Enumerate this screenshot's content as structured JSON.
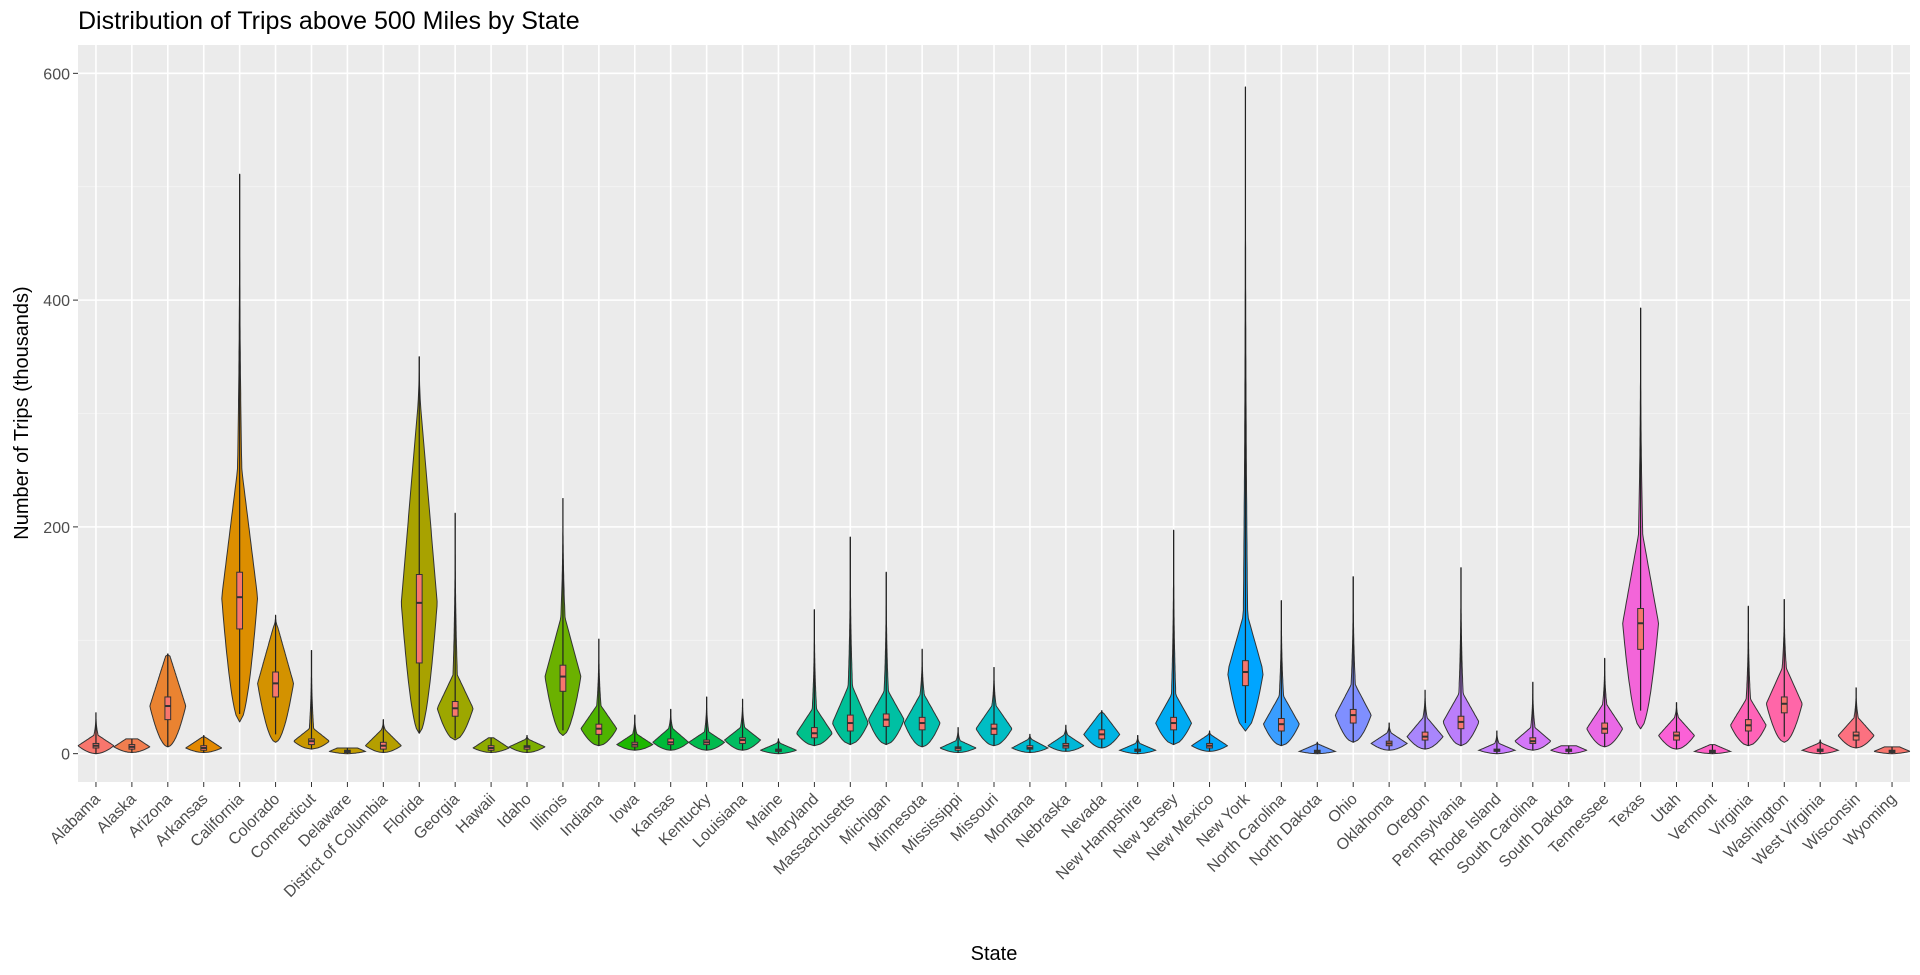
{
  "chart_data": {
    "type": "violin",
    "title": "Distribution of Trips above 500 Miles by State",
    "xlabel": "State",
    "ylabel": "Number of Trips (thousands)",
    "ylim": [
      -25,
      625
    ],
    "yticks": [
      0,
      200,
      400,
      600
    ],
    "grid": true,
    "legend": "none",
    "series": [
      {
        "name": "Alabama",
        "min": 0,
        "q1": 5,
        "median": 7,
        "q3": 9,
        "max": 36,
        "color": "#f8766d"
      },
      {
        "name": "Alaska",
        "min": 1,
        "q1": 4,
        "median": 6,
        "q3": 8,
        "max": 13,
        "color": "#f17e4f"
      },
      {
        "name": "Arizona",
        "min": 6,
        "q1": 30,
        "median": 42,
        "q3": 50,
        "max": 88,
        "color": "#ea8331"
      },
      {
        "name": "Arkansas",
        "min": 1,
        "q1": 3,
        "median": 5,
        "q3": 7,
        "max": 16,
        "color": "#e38900"
      },
      {
        "name": "California",
        "min": 28,
        "q1": 110,
        "median": 138,
        "q3": 160,
        "max": 511,
        "color": "#dc8e00"
      },
      {
        "name": "Colorado",
        "min": 10,
        "q1": 50,
        "median": 62,
        "q3": 72,
        "max": 122,
        "color": "#d39200"
      },
      {
        "name": "Connecticut",
        "min": 4,
        "q1": 8,
        "median": 11,
        "q3": 13,
        "max": 91,
        "color": "#c99800"
      },
      {
        "name": "Delaware",
        "min": 0,
        "q1": 1,
        "median": 2,
        "q3": 3,
        "max": 5,
        "color": "#c09b00"
      },
      {
        "name": "District of Columbia",
        "min": 1,
        "q1": 4,
        "median": 7,
        "q3": 10,
        "max": 30,
        "color": "#b59f00"
      },
      {
        "name": "Florida",
        "min": 18,
        "q1": 80,
        "median": 133,
        "q3": 158,
        "max": 350,
        "color": "#a8a200"
      },
      {
        "name": "Georgia",
        "min": 12,
        "q1": 33,
        "median": 40,
        "q3": 46,
        "max": 212,
        "color": "#9da700"
      },
      {
        "name": "Hawaii",
        "min": 1,
        "q1": 3,
        "median": 5,
        "q3": 7,
        "max": 14,
        "color": "#8fab00"
      },
      {
        "name": "Idaho",
        "min": 1,
        "q1": 4,
        "median": 6,
        "q3": 7,
        "max": 16,
        "color": "#7cae00"
      },
      {
        "name": "Illinois",
        "min": 16,
        "q1": 55,
        "median": 68,
        "q3": 78,
        "max": 225,
        "color": "#6bb100"
      },
      {
        "name": "Indiana",
        "min": 7,
        "q1": 17,
        "median": 22,
        "q3": 26,
        "max": 101,
        "color": "#4fb400"
      },
      {
        "name": "Iowa",
        "min": 3,
        "q1": 6,
        "median": 8,
        "q3": 10,
        "max": 34,
        "color": "#1db700"
      },
      {
        "name": "Kansas",
        "min": 3,
        "q1": 8,
        "median": 10,
        "q3": 13,
        "max": 39,
        "color": "#00ba38"
      },
      {
        "name": "Kentucky",
        "min": 3,
        "q1": 8,
        "median": 10,
        "q3": 12,
        "max": 50,
        "color": "#00bb4e"
      },
      {
        "name": "Louisiana",
        "min": 3,
        "q1": 9,
        "median": 12,
        "q3": 14,
        "max": 48,
        "color": "#00bd61"
      },
      {
        "name": "Maine",
        "min": 0,
        "q1": 2,
        "median": 3,
        "q3": 4,
        "max": 13,
        "color": "#00be70"
      },
      {
        "name": "Maryland",
        "min": 7,
        "q1": 14,
        "median": 18,
        "q3": 23,
        "max": 127,
        "color": "#00c08b"
      },
      {
        "name": "Massachusetts",
        "min": 8,
        "q1": 20,
        "median": 27,
        "q3": 34,
        "max": 191,
        "color": "#00c098"
      },
      {
        "name": "Michigan",
        "min": 8,
        "q1": 24,
        "median": 30,
        "q3": 35,
        "max": 160,
        "color": "#00c0a3"
      },
      {
        "name": "Minnesota",
        "min": 6,
        "q1": 21,
        "median": 27,
        "q3": 32,
        "max": 92,
        "color": "#00c0af"
      },
      {
        "name": "Mississippi",
        "min": 1,
        "q1": 3,
        "median": 5,
        "q3": 6,
        "max": 23,
        "color": "#00bfba"
      },
      {
        "name": "Missouri",
        "min": 7,
        "q1": 17,
        "median": 22,
        "q3": 26,
        "max": 76,
        "color": "#00bdc4"
      },
      {
        "name": "Montana",
        "min": 1,
        "q1": 4,
        "median": 5,
        "q3": 7,
        "max": 17,
        "color": "#00bbcf"
      },
      {
        "name": "Nebraska",
        "min": 2,
        "q1": 5,
        "median": 7,
        "q3": 9,
        "max": 25,
        "color": "#00b8d8"
      },
      {
        "name": "Nevada",
        "min": 5,
        "q1": 13,
        "median": 17,
        "q3": 21,
        "max": 38,
        "color": "#00b4e4"
      },
      {
        "name": "New Hampshire",
        "min": 0,
        "q1": 2,
        "median": 3,
        "q3": 4,
        "max": 16,
        "color": "#00b0eb"
      },
      {
        "name": "New Jersey",
        "min": 8,
        "q1": 21,
        "median": 27,
        "q3": 32,
        "max": 197,
        "color": "#00abf3"
      },
      {
        "name": "New Mexico",
        "min": 2,
        "q1": 5,
        "median": 7,
        "q3": 9,
        "max": 20,
        "color": "#00a5f9"
      },
      {
        "name": "New York",
        "min": 20,
        "q1": 60,
        "median": 72,
        "q3": 82,
        "max": 588,
        "color": "#00a5ff"
      },
      {
        "name": "North Carolina",
        "min": 7,
        "q1": 20,
        "median": 26,
        "q3": 31,
        "max": 135,
        "color": "#399dff"
      },
      {
        "name": "North Dakota",
        "min": 0,
        "q1": 1,
        "median": 2,
        "q3": 3,
        "max": 10,
        "color": "#6597ff"
      },
      {
        "name": "Ohio",
        "min": 10,
        "q1": 27,
        "median": 34,
        "q3": 39,
        "max": 156,
        "color": "#7f8fff"
      },
      {
        "name": "Oklahoma",
        "min": 3,
        "q1": 7,
        "median": 9,
        "q3": 11,
        "max": 27,
        "color": "#9590ff"
      },
      {
        "name": "Oregon",
        "min": 4,
        "q1": 12,
        "median": 15,
        "q3": 19,
        "max": 56,
        "color": "#a986fd"
      },
      {
        "name": "Pennsylvania",
        "min": 7,
        "q1": 22,
        "median": 28,
        "q3": 33,
        "max": 164,
        "color": "#bb7efb"
      },
      {
        "name": "Rhode Island",
        "min": 0,
        "q1": 2,
        "median": 3,
        "q3": 4,
        "max": 20,
        "color": "#c77cff"
      },
      {
        "name": "South Carolina",
        "min": 3,
        "q1": 9,
        "median": 11,
        "q3": 14,
        "max": 63,
        "color": "#d477f8"
      },
      {
        "name": "South Dakota",
        "min": 0,
        "q1": 2,
        "median": 3,
        "q3": 4,
        "max": 7,
        "color": "#e06ef0"
      },
      {
        "name": "Tennessee",
        "min": 6,
        "q1": 18,
        "median": 22,
        "q3": 27,
        "max": 84,
        "color": "#ea69e6"
      },
      {
        "name": "Texas",
        "min": 22,
        "q1": 92,
        "median": 115,
        "q3": 128,
        "max": 393,
        "color": "#f365d9"
      },
      {
        "name": "Utah",
        "min": 4,
        "q1": 12,
        "median": 16,
        "q3": 19,
        "max": 45,
        "color": "#fb61d7"
      },
      {
        "name": "Vermont",
        "min": 0,
        "q1": 1,
        "median": 2,
        "q3": 3,
        "max": 8,
        "color": "#ff62c8"
      },
      {
        "name": "Virginia",
        "min": 7,
        "q1": 20,
        "median": 25,
        "q3": 30,
        "max": 130,
        "color": "#ff63b8"
      },
      {
        "name": "Washington",
        "min": 10,
        "q1": 36,
        "median": 44,
        "q3": 50,
        "max": 136,
        "color": "#ff66a8"
      },
      {
        "name": "West Virginia",
        "min": 0,
        "q1": 2,
        "median": 3,
        "q3": 4,
        "max": 12,
        "color": "#ff6b96"
      },
      {
        "name": "Wisconsin",
        "min": 5,
        "q1": 12,
        "median": 16,
        "q3": 19,
        "max": 58,
        "color": "#fc7180"
      },
      {
        "name": "Wyoming",
        "min": 0,
        "q1": 1,
        "median": 2,
        "q3": 3,
        "max": 6,
        "color": "#f8766d"
      }
    ]
  }
}
